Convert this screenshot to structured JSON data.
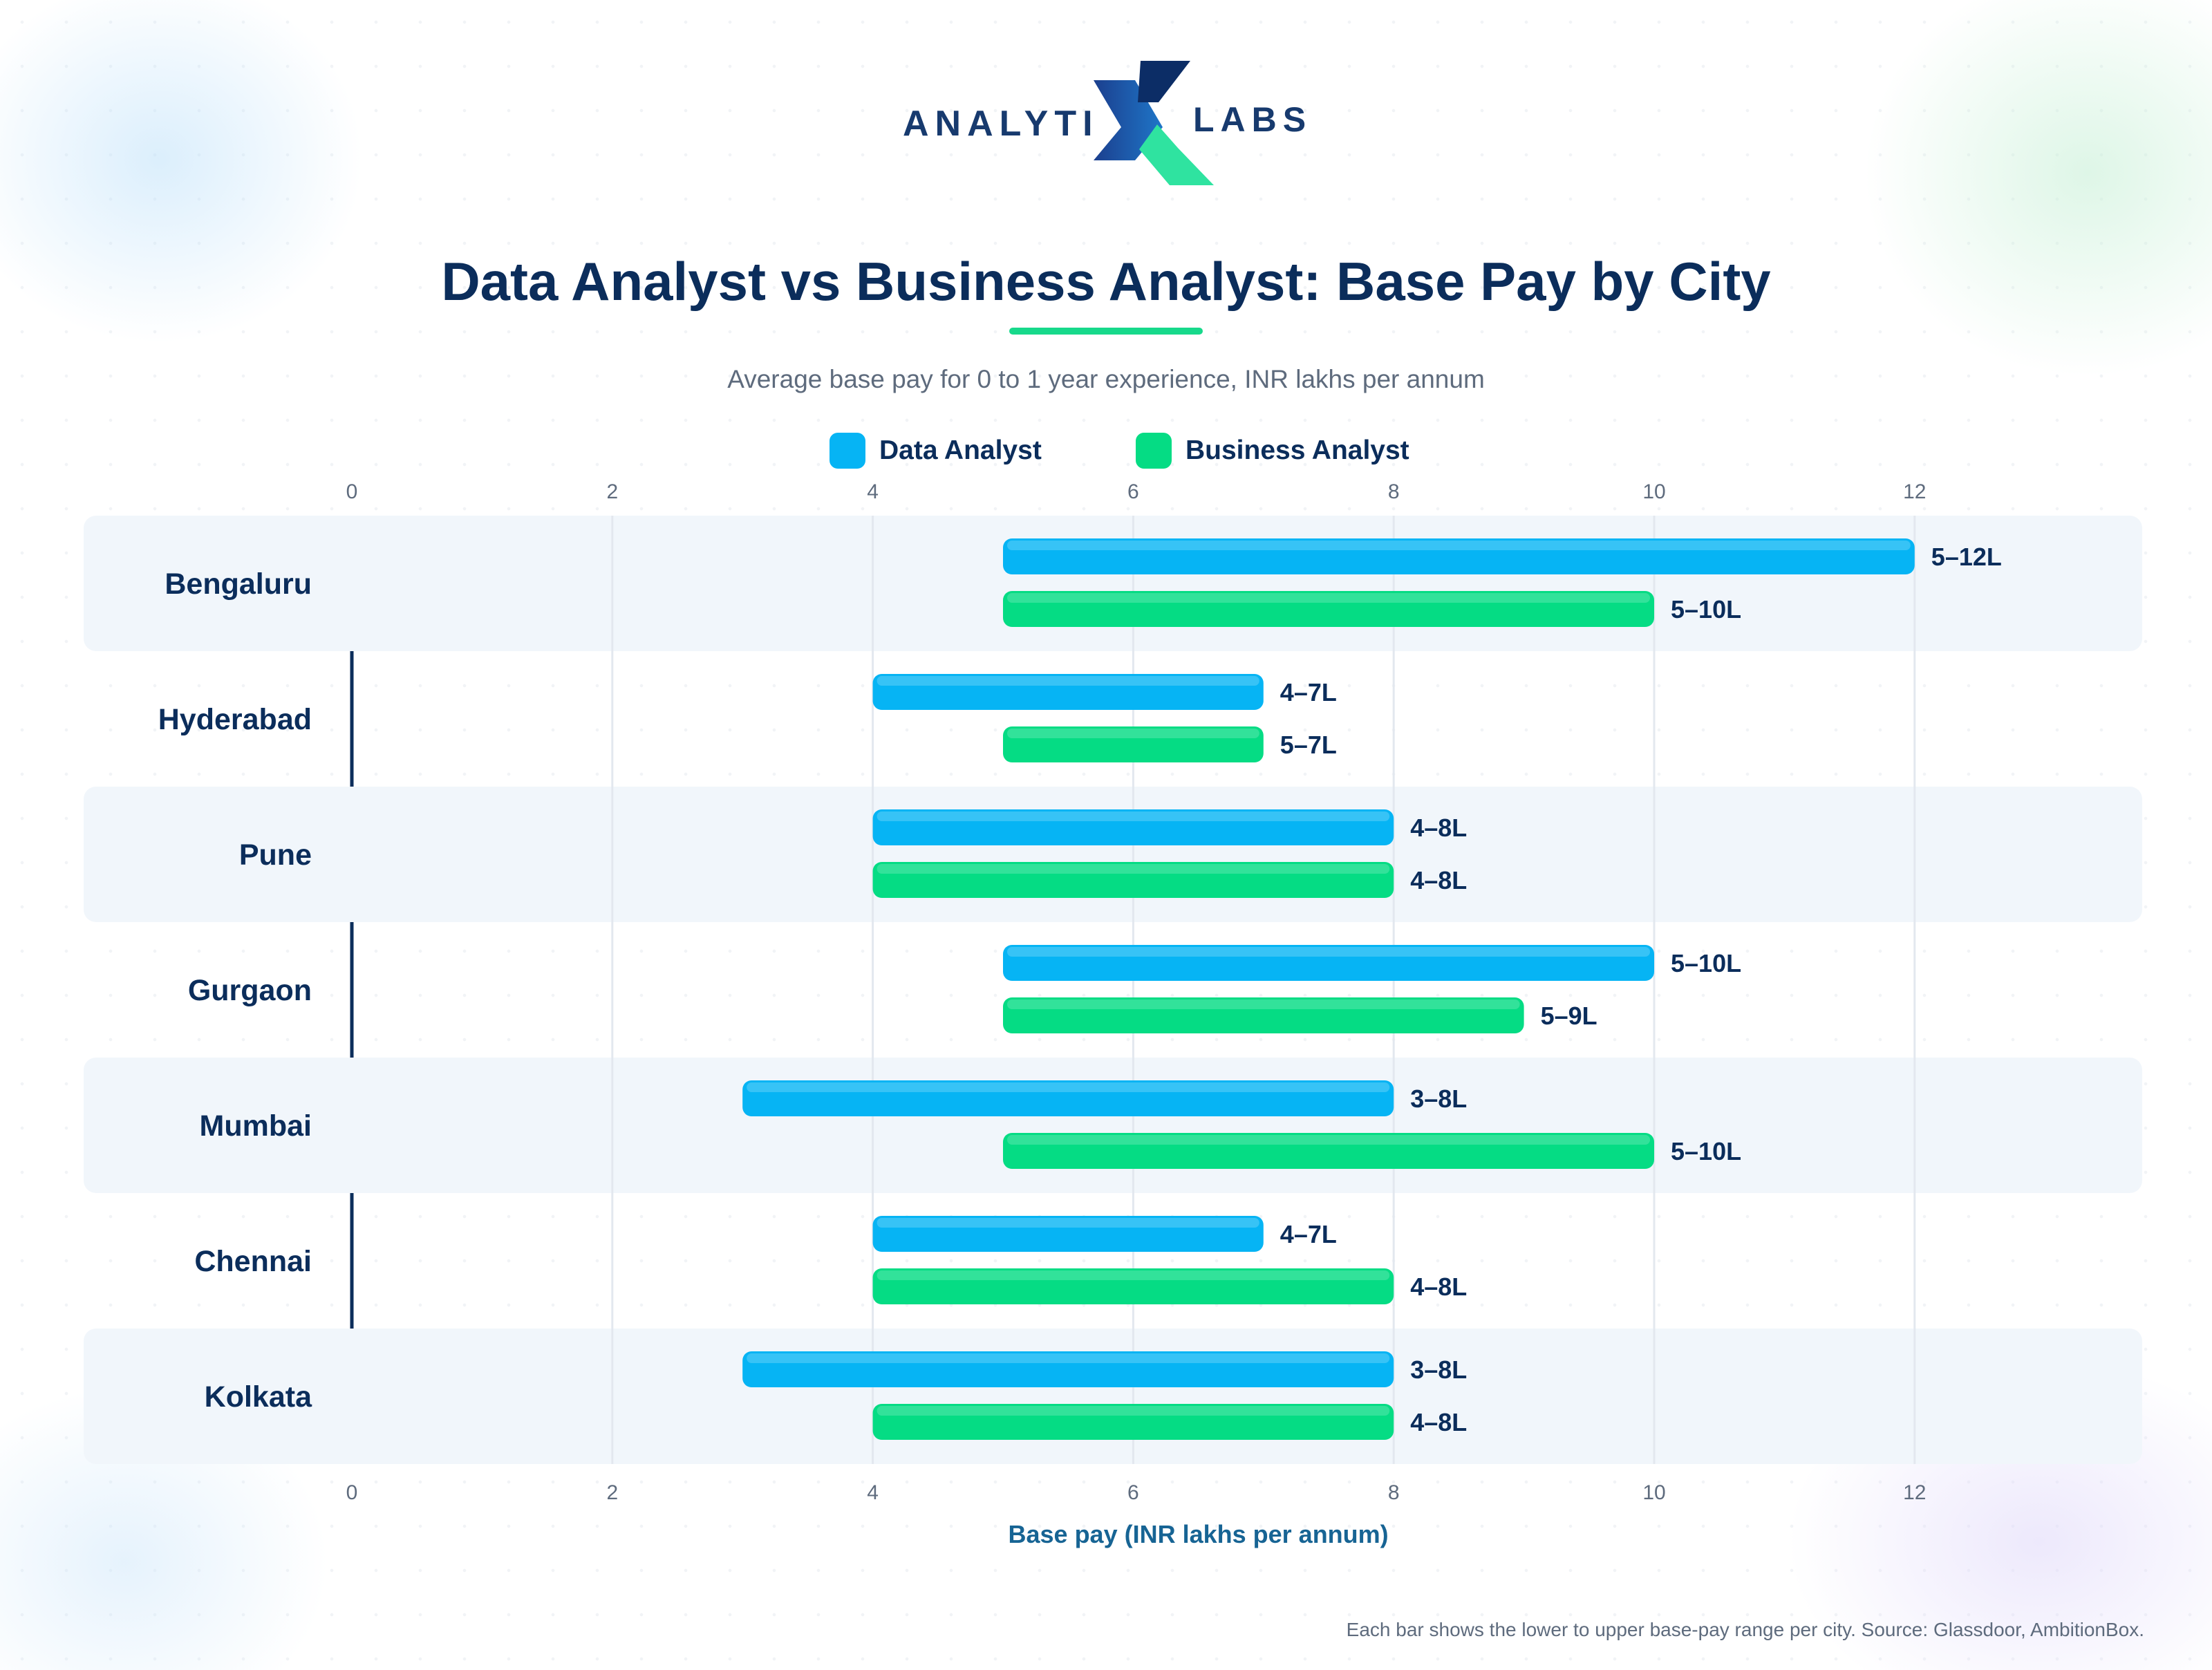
{
  "brand": {
    "logo_left": "ANALYTI",
    "logo_right": "LABS"
  },
  "title": "Data Analyst vs Business Analyst: Base Pay by City",
  "subtitle": "Average base pay for 0 to 1 year experience, INR lakhs per annum",
  "footnote": "Each bar shows the lower to upper base-pay range per city. Source: Glassdoor, AmbitionBox.",
  "colors": {
    "data_analyst": "#06b4f4",
    "business_analyst": "#05dc84",
    "text": "#0b2d5b",
    "axis_title": "#176494"
  },
  "chart_data": {
    "type": "bar",
    "orientation": "horizontal",
    "categories": [
      "Bengaluru",
      "Hyderabad",
      "Pune",
      "Gurgaon",
      "Mumbai",
      "Chennai",
      "Kolkata"
    ],
    "series": [
      {
        "name": "Data Analyst",
        "ranges": [
          [
            5,
            12
          ],
          [
            4,
            7
          ],
          [
            4,
            8
          ],
          [
            5,
            10
          ],
          [
            3,
            8
          ],
          [
            4,
            7
          ],
          [
            3,
            8
          ]
        ],
        "labels": [
          "5–12L",
          "4–7L",
          "4–8L",
          "5–10L",
          "3–8L",
          "4–7L",
          "3–8L"
        ]
      },
      {
        "name": "Business Analyst",
        "ranges": [
          [
            5,
            10
          ],
          [
            5,
            7
          ],
          [
            4,
            8
          ],
          [
            5,
            9
          ],
          [
            5,
            10
          ],
          [
            4,
            8
          ],
          [
            4,
            8
          ]
        ],
        "labels": [
          "5–10L",
          "5–7L",
          "4–8L",
          "5–9L",
          "5–10L",
          "4–8L",
          "4–8L"
        ]
      }
    ],
    "xlim": [
      0,
      13.5
    ],
    "xticks": [
      0,
      2,
      4,
      6,
      8,
      10,
      12
    ],
    "xlabel": "Base pay (INR lakhs per annum)",
    "ylabel": "",
    "grid": true,
    "legend_position": "top-center"
  }
}
